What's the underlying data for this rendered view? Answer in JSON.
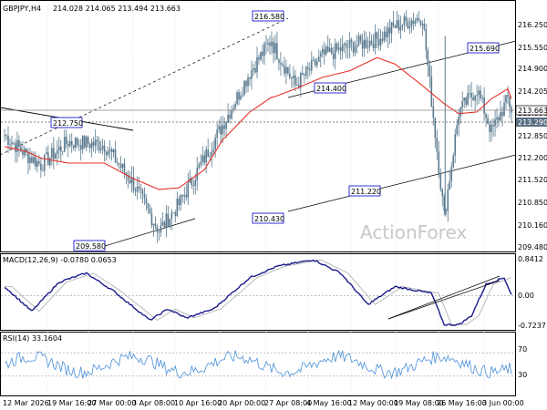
{
  "header": {
    "symbol": "GBPJPY,H4",
    "ohlc": "214.028 214.065 213.494 213.663"
  },
  "watermark": "ActionForex",
  "annotations": [
    "216.580",
    "215.690",
    "214.400",
    "212.750",
    "211.220",
    "210.430",
    "209.580"
  ],
  "price_axis": {
    "ticks": [
      "216.250",
      "215.550",
      "214.900",
      "214.205",
      "213.530",
      "212.850",
      "212.200",
      "211.520",
      "210.850",
      "210.160",
      "209.480"
    ],
    "current": "213.663",
    "level": "213.290"
  },
  "macd": {
    "label": "MACD(12,26,9) -0.0780 0.0653",
    "ticks": [
      "0.8412",
      "0.00",
      "-0.7237"
    ]
  },
  "rsi": {
    "label": "RSI(14) 33.1604",
    "ticks": [
      "70",
      "30"
    ]
  },
  "time_axis": [
    "12 Mar 2026",
    "19 Mar 16:00",
    "27 Mar 00:00",
    "3 Apr 08:00",
    "10 Apr 16:00",
    "20 Apr 00:00",
    "27 Apr 08:00",
    "4 May 16:00",
    "12 May 00:00",
    "19 May 08:00",
    "26 May 16:00",
    "3 Jun 00:00"
  ],
  "colors": {
    "candle": "#5a7a8f",
    "ma": "#e8302a",
    "macd": "#1a1a8c",
    "signal": "#aaaaaa",
    "rsi": "#4a90d9",
    "label_border": "#0000cc"
  },
  "chart_data": [
    {
      "type": "line",
      "title": "GBPJPY,H4",
      "anchors_x": [
        0,
        12,
        20,
        35,
        55,
        70,
        85,
        96,
        110,
        120,
        135,
        147,
        148,
        160,
        175,
        190,
        205,
        215,
        230,
        242,
        250,
        260,
        268,
        277,
        279
      ],
      "anchors_close": [
        212.9,
        212.3,
        212.0,
        212.7,
        212.6,
        211.5,
        210.0,
        210.8,
        212.2,
        213.2,
        214.8,
        215.8,
        215.6,
        214.4,
        215.3,
        215.6,
        215.8,
        216.2,
        216.5,
        210.43,
        213.6,
        214.3,
        213.0,
        214.0,
        213.66
      ],
      "ma_close": [
        212.55,
        212.4,
        212.2,
        212.05,
        212.05,
        211.6,
        211.25,
        211.3,
        211.85,
        212.75,
        213.6,
        214.05,
        214.05,
        214.3,
        214.65,
        214.85,
        215.25,
        215.05,
        214.4,
        213.85,
        213.55,
        213.6,
        214.0,
        214.3,
        214.0
      ],
      "ylim": [
        209.3,
        216.8
      ]
    },
    {
      "type": "line",
      "title": "MACD(12,26,9)",
      "series": [
        {
          "name": "MACD",
          "current": -0.078
        },
        {
          "name": "Signal",
          "current": 0.0653
        }
      ],
      "ylim": [
        -0.7237,
        0.8412
      ]
    },
    {
      "type": "line",
      "title": "RSI(14)",
      "current": 33.1604,
      "ylim": [
        0,
        100
      ]
    }
  ]
}
